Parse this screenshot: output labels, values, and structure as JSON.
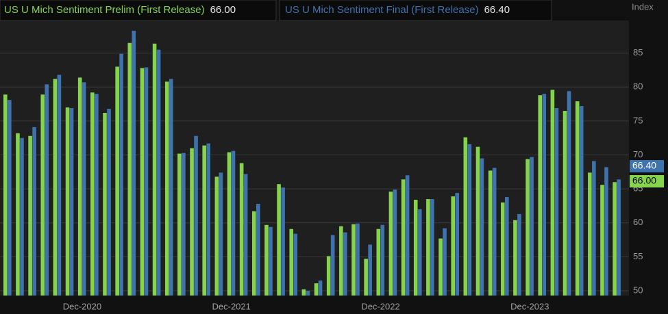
{
  "chart_data": {
    "type": "bar",
    "y_axis_title": "Index",
    "categories": [
      null,
      null,
      null,
      null,
      null,
      null,
      "Dec-2020",
      null,
      null,
      null,
      null,
      null,
      null,
      null,
      null,
      null,
      null,
      null,
      "Dec-2021",
      null,
      null,
      null,
      null,
      null,
      null,
      null,
      null,
      null,
      null,
      null,
      "Dec-2022",
      null,
      null,
      null,
      null,
      null,
      null,
      null,
      null,
      null,
      null,
      null,
      "Dec-2023",
      null,
      null,
      null,
      null,
      null,
      null,
      null
    ],
    "series": [
      {
        "name": "US U Mich Sentiment Prelim (First Release)",
        "color": "#86d44c",
        "legend_value": "66.00",
        "values": [
          78.9,
          73.2,
          72.8,
          78.9,
          81.2,
          77.0,
          81.4,
          79.2,
          76.2,
          83.0,
          86.5,
          82.8,
          86.4,
          80.8,
          70.2,
          71.0,
          71.4,
          66.8,
          70.4,
          68.8,
          61.7,
          59.7,
          65.7,
          59.1,
          50.2,
          51.1,
          55.1,
          59.5,
          59.8,
          54.7,
          59.1,
          64.6,
          66.4,
          63.4,
          63.5,
          57.7,
          63.9,
          72.6,
          71.2,
          67.7,
          63.0,
          60.4,
          69.4,
          78.8,
          79.6,
          76.5,
          77.9,
          67.4,
          65.6,
          66.0
        ]
      },
      {
        "name": "US U Mich Sentiment Final (First Release)",
        "color": "#3f73ad",
        "legend_value": "66.40",
        "values": [
          78.1,
          72.5,
          74.1,
          80.4,
          81.8,
          76.9,
          80.7,
          79.0,
          76.8,
          84.9,
          88.3,
          82.9,
          85.5,
          81.2,
          70.3,
          72.8,
          71.7,
          67.4,
          70.6,
          67.2,
          62.8,
          59.4,
          65.2,
          58.4,
          50.0,
          51.5,
          58.2,
          58.6,
          59.9,
          56.8,
          59.7,
          64.9,
          67.0,
          62.0,
          63.5,
          59.2,
          64.4,
          71.6,
          69.5,
          68.1,
          63.8,
          61.3,
          69.7,
          79.0,
          76.9,
          79.4,
          77.2,
          69.1,
          68.2,
          66.4
        ]
      }
    ],
    "ylim": [
      49.3,
      89.8
    ],
    "yticks": [
      50,
      55,
      60,
      65,
      70,
      75,
      80,
      85
    ],
    "grid": true
  }
}
